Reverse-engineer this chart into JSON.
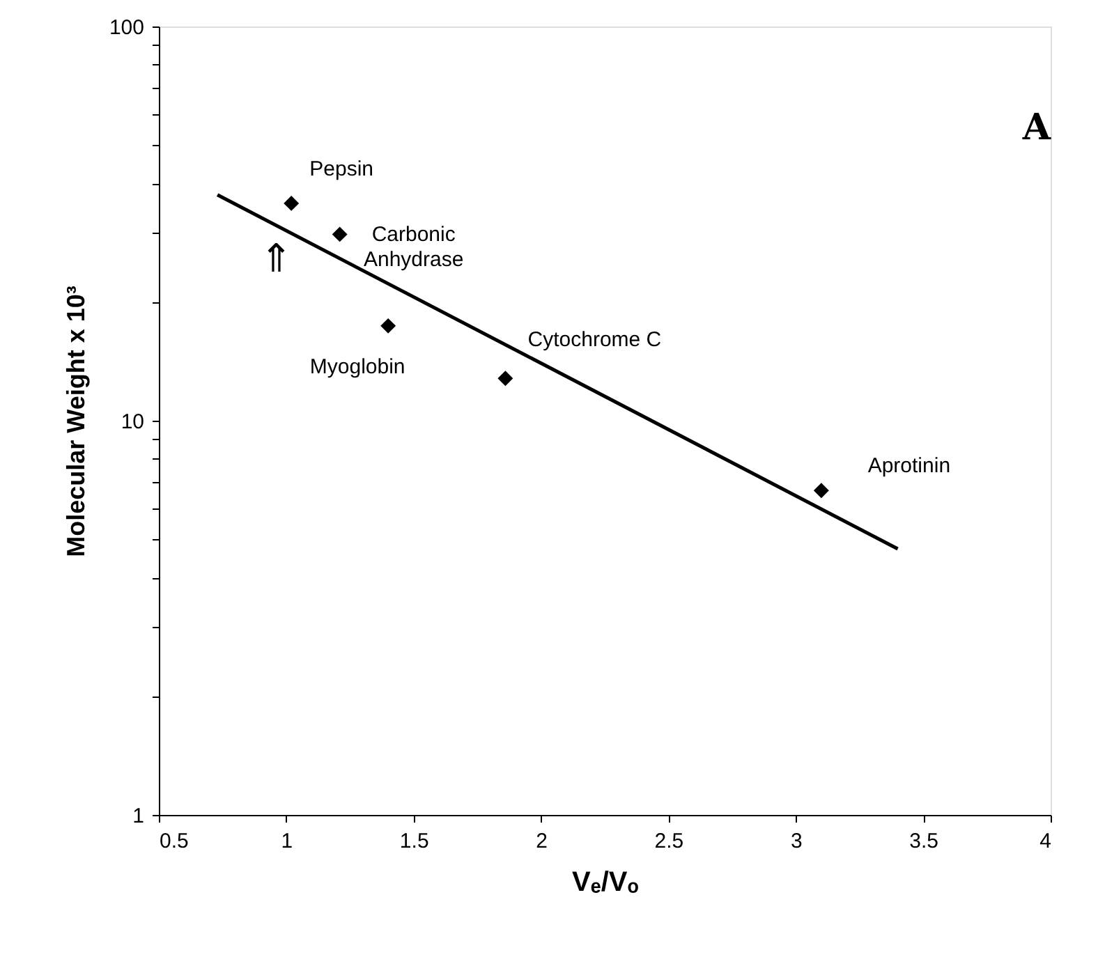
{
  "chart_data": {
    "type": "scatter",
    "xlabel": "Vₑ/Vₒ",
    "ylabel": "Molecular Weight x 10³",
    "log": "y",
    "grid": false,
    "marker": "diamond",
    "xlim": [
      0.5,
      4
    ],
    "xticks": [
      0.5,
      1,
      1.5,
      2,
      2.5,
      3,
      3.5,
      4
    ],
    "ylim": [
      1,
      100
    ],
    "yticks": [
      1,
      {
        "value": 2,
        "label": null
      },
      {
        "value": 3,
        "label": null
      },
      {
        "value": 4,
        "label": null
      },
      {
        "value": 5,
        "label": null
      },
      {
        "value": 6,
        "label": null
      },
      {
        "value": 7,
        "label": null
      },
      {
        "value": 8,
        "label": null
      },
      {
        "value": 9,
        "label": null
      },
      10,
      {
        "value": 20,
        "label": null
      },
      {
        "value": 30,
        "label": null
      },
      {
        "value": 40,
        "label": null
      },
      {
        "value": 50,
        "label": null
      },
      {
        "value": 60,
        "label": null
      },
      {
        "value": 70,
        "label": null
      },
      {
        "value": 80,
        "label": null
      },
      {
        "value": 90,
        "label": null
      },
      100
    ],
    "series": [
      {
        "color": "#000000",
        "x": [
          1.02,
          1.21,
          1.4,
          1.86,
          3.1
        ],
        "values": [
          35.6,
          29.7,
          17.4,
          12.8,
          6.65
        ]
      },
      {
        "type": "line",
        "color": "#000000",
        "marker": "none",
        "line_style": "solid",
        "x": [
          0.73,
          3.4
        ],
        "values": [
          37.4,
          4.73
        ]
      }
    ],
    "annotations": [
      {
        "text": "Pepsin",
        "x": 1.02,
        "y": 35.6
      },
      {
        "text": "Carbonic\nAnhydrase",
        "x": 1.21,
        "y": 29.7
      },
      {
        "text": "Myoglobin",
        "x": 1.4,
        "y": 17.4
      },
      {
        "text": "Cytochrome C",
        "x": 1.86,
        "y": 12.8
      },
      {
        "text": "Aprotinin",
        "x": 3.1,
        "y": 6.65
      },
      {
        "text": "⇑",
        "x": 0.96,
        "y": 31.3
      },
      "A"
    ]
  }
}
